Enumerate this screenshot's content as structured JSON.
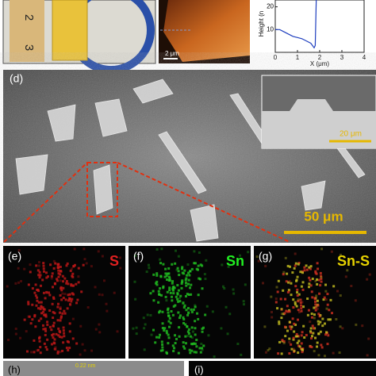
{
  "panel_a": {
    "ruler_labels": [
      "2",
      "3"
    ]
  },
  "panel_b": {
    "scale_bar": "2 μm"
  },
  "panel_c": {
    "y_label": "Height (n",
    "x_label": "X (μm)",
    "xlim": [
      0,
      4
    ],
    "ylim": [
      0,
      23
    ],
    "xticks": [
      0,
      1,
      2,
      3,
      4
    ],
    "yticks": [
      10,
      20
    ],
    "profile": {
      "x": [
        0,
        0.2,
        0.4,
        0.6,
        0.8,
        1.0,
        1.2,
        1.4,
        1.6,
        1.75,
        1.8,
        1.85
      ],
      "y": [
        10,
        10,
        9,
        8,
        7,
        6.5,
        6,
        5,
        4,
        2,
        3,
        25
      ]
    }
  },
  "panel_d": {
    "label": "(d)",
    "inset_scale": "20 μm",
    "scale_bar": "50 μm"
  },
  "panel_e": {
    "label": "(e)",
    "element": "S"
  },
  "panel_f": {
    "label": "(f)",
    "element": "Sn"
  },
  "panel_g": {
    "label": "(g)",
    "element": "Sn-S"
  },
  "panel_h": {
    "label": "(h)",
    "annotation": "0.22 nm"
  },
  "panel_i": {
    "label": "(i)"
  }
}
